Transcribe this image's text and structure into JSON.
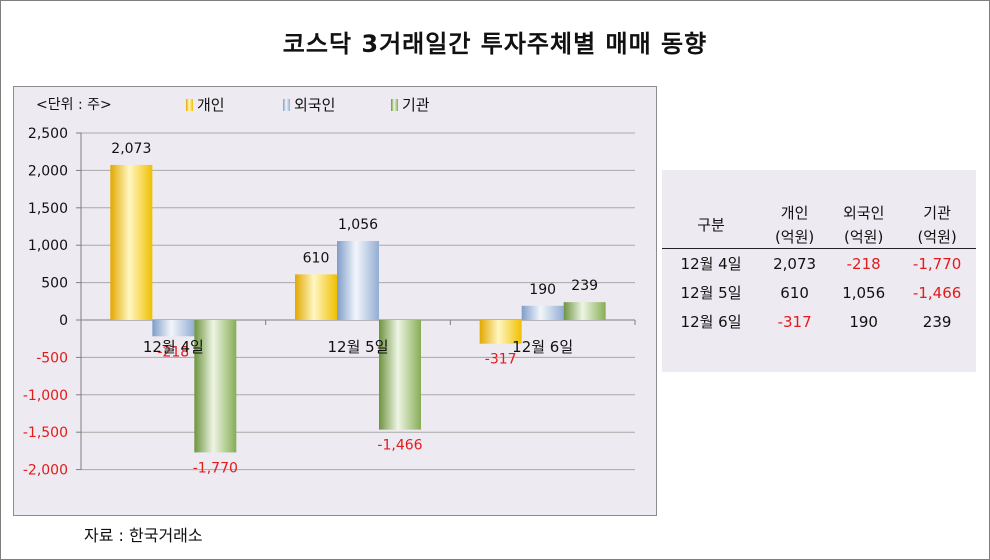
{
  "title": "코스닥 3거래일간 투자주체별 매매 동향",
  "source": "자료 : 한국거래소",
  "chart_data": {
    "type": "bar",
    "unit_label": "<단위 : 주>",
    "categories": [
      "12월 4일",
      "12월 5일",
      "12월 6일"
    ],
    "series": [
      {
        "name": "개인",
        "values": [
          2073,
          610,
          -317
        ],
        "labels": [
          "2,073",
          "610",
          "-317"
        ]
      },
      {
        "name": "외국인",
        "values": [
          -218,
          1056,
          190
        ],
        "labels": [
          "-218",
          "1,056",
          "190"
        ]
      },
      {
        "name": "기관",
        "values": [
          -1770,
          -1466,
          239
        ],
        "labels": [
          "-1,770",
          "-1,466",
          "239"
        ]
      }
    ],
    "yticks": [
      "2,500",
      "2,000",
      "1,500",
      "1,000",
      "500",
      "0",
      "-500",
      "-1,000",
      "-1,500",
      "-2,000"
    ],
    "ylim": [
      -2000,
      2500
    ],
    "grid": true,
    "legend_position": "top",
    "colors": {
      "개인": "#f5c518",
      "외국인": "#9db7d8",
      "기관": "#8fb45a",
      "negative_label": "#e21b1b"
    }
  },
  "table": {
    "header": [
      [
        "구분"
      ],
      [
        "개인",
        "(억원)"
      ],
      [
        "외국인",
        "(억원)"
      ],
      [
        "기관",
        "(억원)"
      ]
    ],
    "rows": [
      {
        "date": "12월 4일",
        "cells": [
          "2,073",
          "-218",
          "-1,770"
        ]
      },
      {
        "date": "12월 5일",
        "cells": [
          "610",
          "1,056",
          "-1,466"
        ]
      },
      {
        "date": "12월 6일",
        "cells": [
          "-317",
          "190",
          "239"
        ]
      }
    ]
  }
}
